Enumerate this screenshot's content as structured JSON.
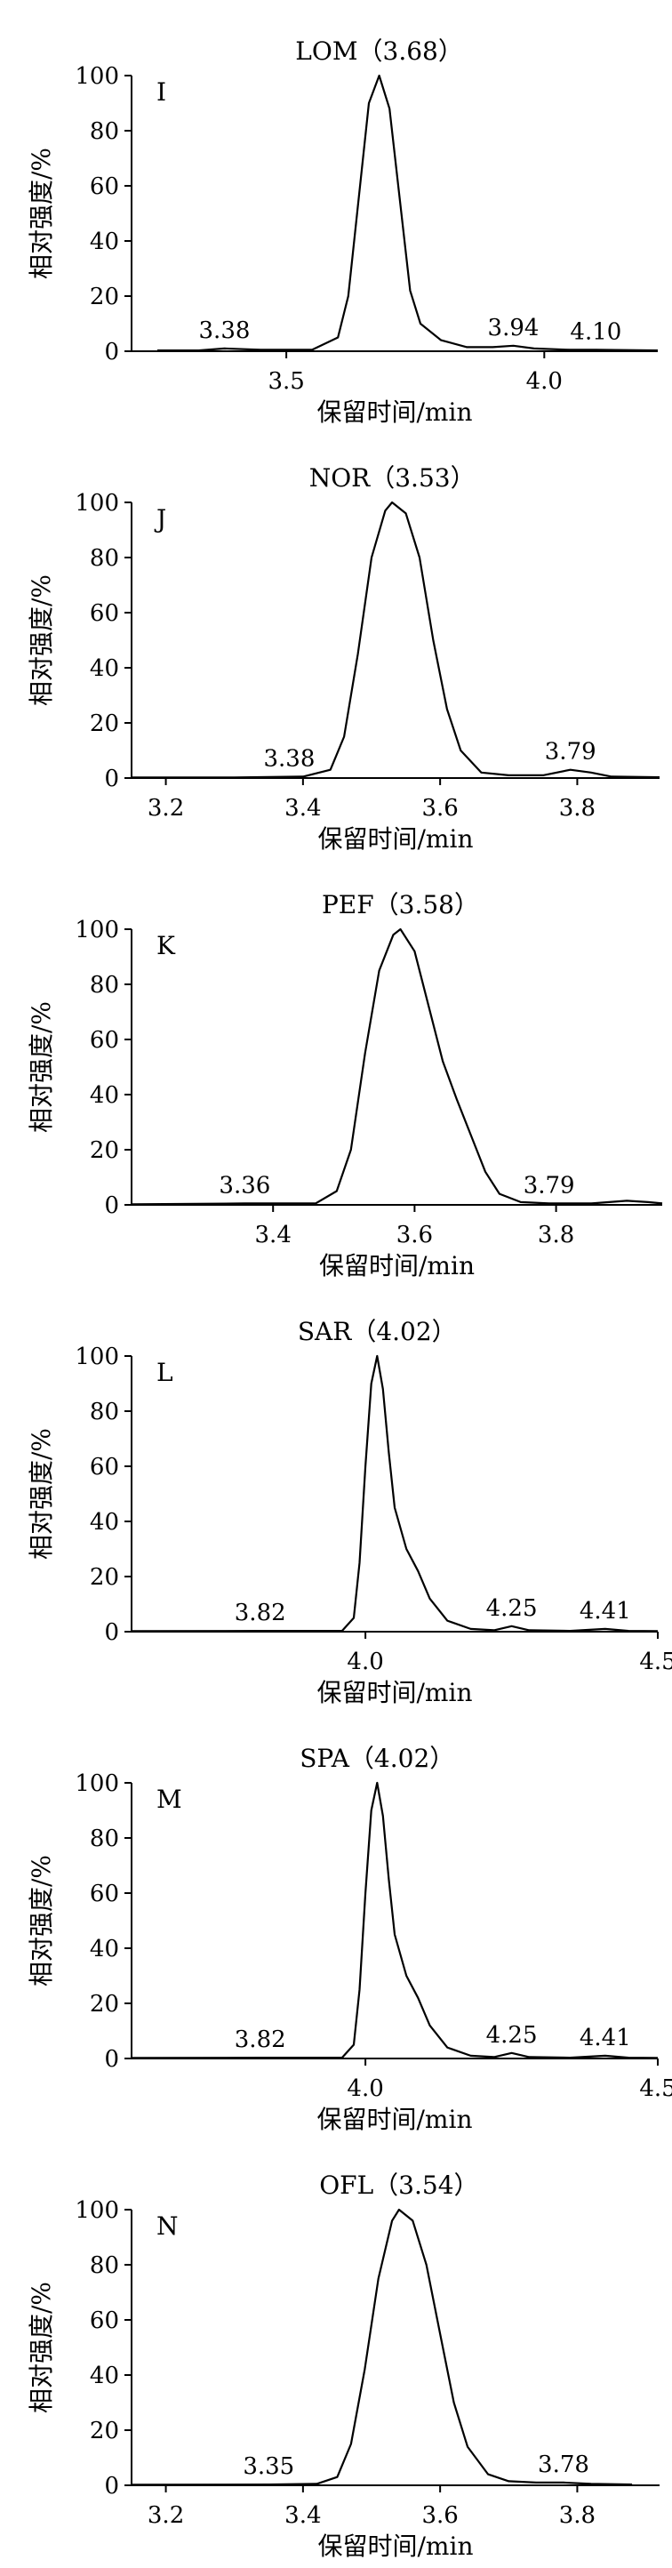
{
  "chart_data": [
    {
      "type": "line",
      "panel": "I",
      "title": "LOM（3.68）",
      "xlabel": "保留时间/min",
      "ylabel": "相对强度/%",
      "xlim": [
        3.2,
        4.22
      ],
      "ylim": [
        0,
        100
      ],
      "xticks": [
        "3.5",
        "4.0"
      ],
      "xtick_values": [
        3.5,
        4.0
      ],
      "yticks": [
        "0",
        "20",
        "40",
        "60",
        "80",
        "100"
      ],
      "ytick_values": [
        0,
        20,
        40,
        60,
        80,
        100
      ],
      "grid": false,
      "peaks": [
        {
          "rt": 3.38,
          "label": "3.38",
          "height": 1
        },
        {
          "rt": 3.68,
          "label": "",
          "height": 100
        },
        {
          "rt": 3.94,
          "label": "3.94",
          "height": 2
        },
        {
          "rt": 4.1,
          "label": "4.10",
          "height": 0.5
        }
      ],
      "series": [
        {
          "x": [
            3.25,
            3.33,
            3.38,
            3.45,
            3.55,
            3.6,
            3.62,
            3.64,
            3.66,
            3.68,
            3.7,
            3.72,
            3.74,
            3.76,
            3.8,
            3.85,
            3.9,
            3.94,
            3.98,
            4.05,
            4.1,
            4.22
          ],
          "y": [
            0.3,
            0.3,
            1,
            0.5,
            0.5,
            5,
            20,
            55,
            90,
            100,
            88,
            55,
            22,
            10,
            4,
            1.5,
            1.5,
            2,
            1,
            0.5,
            0.5,
            0.3
          ]
        }
      ]
    },
    {
      "type": "line",
      "panel": "J",
      "title": "NOR（3.53）",
      "xlabel": "保留时间/min",
      "ylabel": "相对强度/%",
      "xlim": [
        3.15,
        3.92
      ],
      "ylim": [
        0,
        100
      ],
      "xticks": [
        "3.2",
        "3.4",
        "3.6",
        "3.8"
      ],
      "xtick_values": [
        3.2,
        3.4,
        3.6,
        3.8
      ],
      "yticks": [
        "0",
        "20",
        "40",
        "60",
        "80",
        "100"
      ],
      "ytick_values": [
        0,
        20,
        40,
        60,
        80,
        100
      ],
      "grid": false,
      "peaks": [
        {
          "rt": 3.38,
          "label": "3.38",
          "height": 0.5
        },
        {
          "rt": 3.53,
          "label": "",
          "height": 100
        },
        {
          "rt": 3.79,
          "label": "3.79",
          "height": 3
        }
      ],
      "series": [
        {
          "x": [
            3.15,
            3.3,
            3.4,
            3.44,
            3.46,
            3.48,
            3.5,
            3.52,
            3.53,
            3.55,
            3.57,
            3.59,
            3.61,
            3.63,
            3.66,
            3.7,
            3.75,
            3.79,
            3.82,
            3.85,
            3.92
          ],
          "y": [
            0.2,
            0.2,
            0.5,
            3,
            15,
            45,
            80,
            97,
            100,
            96,
            80,
            50,
            25,
            10,
            2,
            1,
            1,
            3,
            2,
            0.5,
            0.3
          ]
        }
      ]
    },
    {
      "type": "line",
      "panel": "K",
      "title": "PEF（3.58）",
      "xlabel": "保留时间/min",
      "ylabel": "相对强度/%",
      "xlim": [
        3.2,
        3.95
      ],
      "ylim": [
        0,
        100
      ],
      "xticks": [
        "3.4",
        "3.6",
        "3.8"
      ],
      "xtick_values": [
        3.4,
        3.6,
        3.8
      ],
      "yticks": [
        "0",
        "20",
        "40",
        "60",
        "80",
        "100"
      ],
      "ytick_values": [
        0,
        20,
        40,
        60,
        80,
        100
      ],
      "grid": false,
      "peaks": [
        {
          "rt": 3.36,
          "label": "3.36",
          "height": 0.5
        },
        {
          "rt": 3.58,
          "label": "",
          "height": 100
        },
        {
          "rt": 3.79,
          "label": "3.79",
          "height": 0.5
        }
      ],
      "series": [
        {
          "x": [
            3.2,
            3.36,
            3.46,
            3.49,
            3.51,
            3.53,
            3.55,
            3.57,
            3.58,
            3.6,
            3.62,
            3.64,
            3.66,
            3.68,
            3.7,
            3.72,
            3.75,
            3.79,
            3.85,
            3.9,
            3.93,
            3.95
          ],
          "y": [
            0.2,
            0.5,
            0.5,
            5,
            20,
            55,
            85,
            98,
            100,
            92,
            72,
            52,
            38,
            25,
            12,
            4,
            1,
            0.5,
            0.5,
            1.5,
            1,
            0.5
          ]
        }
      ]
    },
    {
      "type": "line",
      "panel": "L",
      "title": "SAR（4.02）",
      "xlabel": "保留时间/min",
      "ylabel": "相对强度/%",
      "xlim": [
        3.6,
        4.5
      ],
      "ylim": [
        0,
        100
      ],
      "xticks": [
        "4.0",
        "4.5"
      ],
      "xtick_values": [
        4.0,
        4.5
      ],
      "yticks": [
        "0",
        "20",
        "40",
        "60",
        "80",
        "100"
      ],
      "ytick_values": [
        0,
        20,
        40,
        60,
        80,
        100
      ],
      "grid": false,
      "peaks": [
        {
          "rt": 3.82,
          "label": "3.82",
          "height": 0.3
        },
        {
          "rt": 4.02,
          "label": "",
          "height": 100
        },
        {
          "rt": 4.25,
          "label": "4.25",
          "height": 2
        },
        {
          "rt": 4.41,
          "label": "4.41",
          "height": 1
        }
      ],
      "series": [
        {
          "x": [
            3.6,
            3.82,
            3.96,
            3.98,
            3.99,
            4.0,
            4.01,
            4.02,
            4.03,
            4.04,
            4.05,
            4.07,
            4.09,
            4.11,
            4.14,
            4.18,
            4.22,
            4.25,
            4.28,
            4.35,
            4.41,
            4.45,
            4.5
          ],
          "y": [
            0.2,
            0.3,
            0.3,
            5,
            25,
            60,
            90,
            100,
            88,
            65,
            45,
            30,
            22,
            12,
            4,
            1,
            0.5,
            2,
            0.5,
            0.3,
            1,
            0.3,
            0.2
          ]
        }
      ]
    },
    {
      "type": "line",
      "panel": "M",
      "title": "SPA（4.02）",
      "xlabel": "保留时间/min",
      "ylabel": "相对强度/%",
      "xlim": [
        3.6,
        4.5
      ],
      "ylim": [
        0,
        100
      ],
      "xticks": [
        "4.0",
        "4.5"
      ],
      "xtick_values": [
        4.0,
        4.5
      ],
      "yticks": [
        "0",
        "20",
        "40",
        "60",
        "80",
        "100"
      ],
      "ytick_values": [
        0,
        20,
        40,
        60,
        80,
        100
      ],
      "grid": false,
      "peaks": [
        {
          "rt": 3.82,
          "label": "3.82",
          "height": 0.3
        },
        {
          "rt": 4.02,
          "label": "",
          "height": 100
        },
        {
          "rt": 4.25,
          "label": "4.25",
          "height": 2
        },
        {
          "rt": 4.41,
          "label": "4.41",
          "height": 1
        }
      ],
      "series": [
        {
          "x": [
            3.6,
            3.82,
            3.96,
            3.98,
            3.99,
            4.0,
            4.01,
            4.02,
            4.03,
            4.04,
            4.05,
            4.07,
            4.09,
            4.11,
            4.14,
            4.18,
            4.22,
            4.25,
            4.28,
            4.35,
            4.41,
            4.45,
            4.5
          ],
          "y": [
            0.2,
            0.3,
            0.3,
            5,
            25,
            60,
            90,
            100,
            88,
            65,
            45,
            30,
            22,
            12,
            4,
            1,
            0.5,
            2,
            0.5,
            0.3,
            1,
            0.3,
            0.2
          ]
        }
      ]
    },
    {
      "type": "line",
      "panel": "N",
      "title": "OFL（3.54）",
      "xlabel": "保留时间/min",
      "ylabel": "相对强度/%",
      "xlim": [
        3.15,
        3.92
      ],
      "ylim": [
        0,
        100
      ],
      "xticks": [
        "3.2",
        "3.4",
        "3.6",
        "3.8"
      ],
      "xtick_values": [
        3.2,
        3.4,
        3.6,
        3.8
      ],
      "yticks": [
        "0",
        "20",
        "40",
        "60",
        "80",
        "100"
      ],
      "ytick_values": [
        0,
        20,
        40,
        60,
        80,
        100
      ],
      "grid": false,
      "peaks": [
        {
          "rt": 3.35,
          "label": "3.35",
          "height": 0.3
        },
        {
          "rt": 3.54,
          "label": "",
          "height": 100
        },
        {
          "rt": 3.78,
          "label": "3.78",
          "height": 1
        }
      ],
      "series": [
        {
          "x": [
            3.15,
            3.35,
            3.42,
            3.45,
            3.47,
            3.49,
            3.51,
            3.53,
            3.54,
            3.56,
            3.58,
            3.6,
            3.62,
            3.64,
            3.67,
            3.7,
            3.74,
            3.78,
            3.82,
            3.88
          ],
          "y": [
            0.2,
            0.3,
            0.5,
            3,
            15,
            42,
            75,
            96,
            100,
            96,
            80,
            55,
            30,
            14,
            4,
            1.5,
            1,
            1,
            0.5,
            0.3
          ]
        }
      ]
    }
  ]
}
